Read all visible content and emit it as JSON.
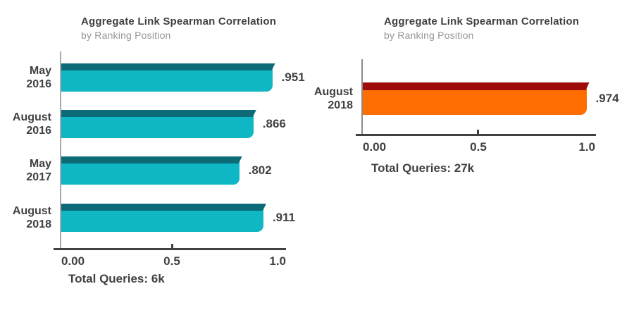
{
  "chart_data": [
    {
      "type": "bar",
      "orientation": "horizontal",
      "title": "Aggregate Link Spearman Correlation",
      "subtitle": "by Ranking Position",
      "categories": [
        "May 2016",
        "August 2016",
        "May 2017",
        "August 2018"
      ],
      "values": [
        0.951,
        0.866,
        0.802,
        0.911
      ],
      "value_labels": [
        ".951",
        ".866",
        ".802",
        ".911"
      ],
      "xlabel": "",
      "ylabel": "",
      "xlim": [
        0,
        1
      ],
      "xtick_values": [
        0,
        0.5,
        1
      ],
      "xtick_labels": [
        "0.00",
        "0.5",
        "1.0"
      ],
      "footer": "Total Queries: 6k",
      "bar_color": "#0fb6c4",
      "band_color": "#0d6b77",
      "grid": false,
      "legend": false
    },
    {
      "type": "bar",
      "orientation": "horizontal",
      "title": "Aggregate Link Spearman Correlation",
      "subtitle": "by Ranking Position",
      "categories": [
        "August 2018"
      ],
      "values": [
        0.974
      ],
      "value_labels": [
        ".974"
      ],
      "xlabel": "",
      "ylabel": "",
      "xlim": [
        0,
        1
      ],
      "xtick_values": [
        0,
        0.5,
        1
      ],
      "xtick_labels": [
        "0.00",
        "0.5",
        "1.0"
      ],
      "footer": "Total Queries: 27k",
      "bar_color": "#ff6e00",
      "band_color": "#9d0b0b",
      "grid": false,
      "legend": false
    }
  ],
  "style_colors": {
    "heading_text": "#414042",
    "subtitle_text": "#939598",
    "value_text": "#414042",
    "axis_line_dark": "#414042",
    "axis_line_light": "#a7a9ac"
  }
}
